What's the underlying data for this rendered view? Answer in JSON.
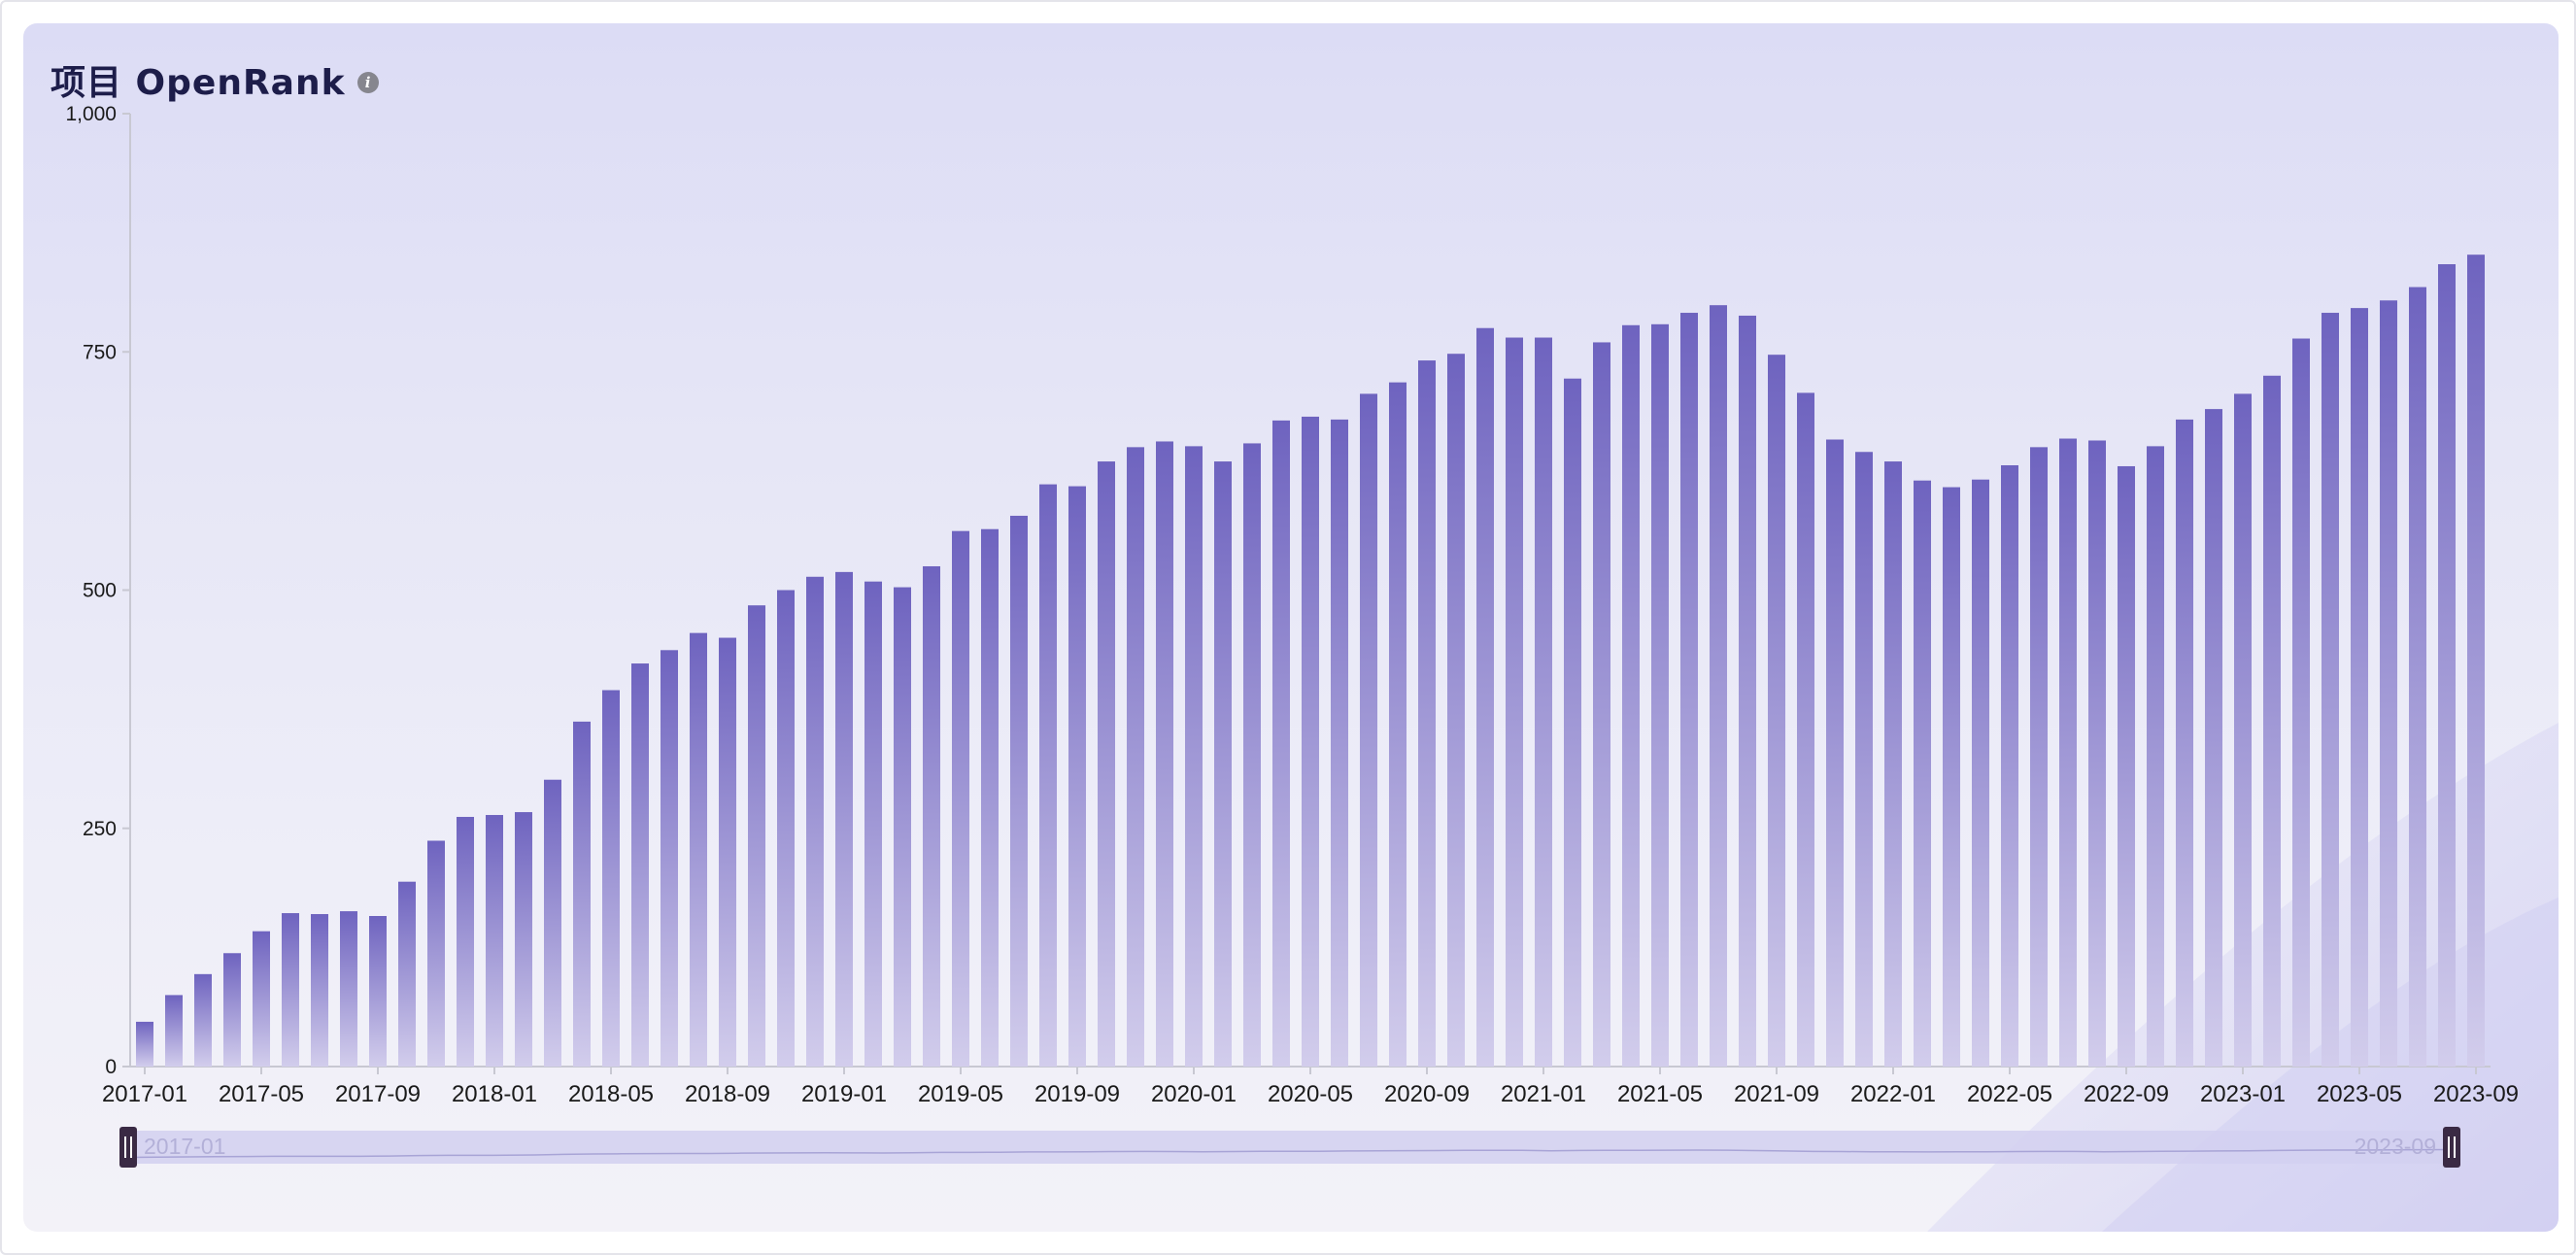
{
  "card": {
    "title": "项目 OpenRank",
    "info_icon": "info-icon"
  },
  "colors": {
    "bar_top": "#6e63bf",
    "bar_bottom": "#d2cdec",
    "axis": "#c8c8d2",
    "zoom_track": "#d2d0f0",
    "zoom_handle": "#3a2a44"
  },
  "chart_data": {
    "type": "bar",
    "title": "项目 OpenRank",
    "xlabel": "",
    "ylabel": "",
    "ylim": [
      0,
      1000
    ],
    "yticks": [
      "0",
      "250",
      "500",
      "750",
      "1,000"
    ],
    "grid": false,
    "legend": "none",
    "x_tick_labels": [
      "2017-01",
      "2017-05",
      "2017-09",
      "2018-01",
      "2018-05",
      "2018-09",
      "2019-01",
      "2019-05",
      "2019-09",
      "2020-01",
      "2020-05",
      "2020-09",
      "2021-01",
      "2021-05",
      "2021-09",
      "2022-01",
      "2022-05",
      "2022-09",
      "2023-01",
      "2023-05",
      "2023-09"
    ],
    "categories": [
      "2017-01",
      "2017-02",
      "2017-03",
      "2017-04",
      "2017-05",
      "2017-06",
      "2017-07",
      "2017-08",
      "2017-09",
      "2017-10",
      "2017-11",
      "2017-12",
      "2018-01",
      "2018-02",
      "2018-03",
      "2018-04",
      "2018-05",
      "2018-06",
      "2018-07",
      "2018-08",
      "2018-09",
      "2018-10",
      "2018-11",
      "2018-12",
      "2019-01",
      "2019-02",
      "2019-03",
      "2019-04",
      "2019-05",
      "2019-06",
      "2019-07",
      "2019-08",
      "2019-09",
      "2019-10",
      "2019-11",
      "2019-12",
      "2020-01",
      "2020-02",
      "2020-03",
      "2020-04",
      "2020-05",
      "2020-06",
      "2020-07",
      "2020-08",
      "2020-09",
      "2020-10",
      "2020-11",
      "2020-12",
      "2021-01",
      "2021-02",
      "2021-03",
      "2021-04",
      "2021-05",
      "2021-06",
      "2021-07",
      "2021-08",
      "2021-09",
      "2021-10",
      "2021-11",
      "2021-12",
      "2022-01",
      "2022-02",
      "2022-03",
      "2022-04",
      "2022-05",
      "2022-06",
      "2022-07",
      "2022-08",
      "2022-09",
      "2022-10",
      "2022-11",
      "2022-12",
      "2023-01",
      "2023-02",
      "2023-03",
      "2023-04",
      "2023-05",
      "2023-06",
      "2023-07",
      "2023-08",
      "2023-09"
    ],
    "values": [
      47,
      75,
      97,
      119,
      142,
      161,
      160,
      163,
      158,
      194,
      237,
      262,
      264,
      267,
      301,
      362,
      395,
      423,
      437,
      455,
      450,
      484,
      500,
      514,
      519,
      509,
      503,
      525,
      562,
      564,
      578,
      611,
      609,
      635,
      650,
      656,
      651,
      635,
      654,
      678,
      682,
      679,
      706,
      718,
      741,
      748,
      775,
      765,
      765,
      722,
      760,
      778,
      779,
      791,
      799,
      788,
      747,
      707,
      658,
      645,
      635,
      615,
      608,
      616,
      631,
      650,
      659,
      657,
      630,
      651,
      679,
      690,
      706,
      725,
      764,
      791,
      796,
      804,
      818,
      842,
      852
    ],
    "data_zoom": {
      "start_label": "2017-01",
      "end_label": "2023-09"
    }
  }
}
